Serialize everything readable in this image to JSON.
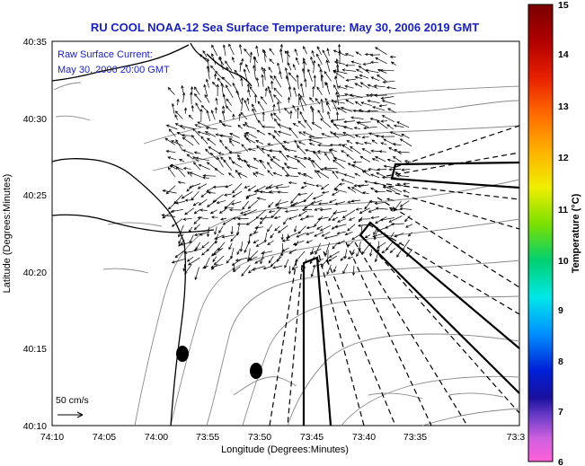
{
  "title": "RU COOL  NOAA-12  Sea Surface Temperature:  May 30, 2006 2019 GMT",
  "annotation": {
    "line1": "Raw Surface Current:",
    "line2": "May 30, 2006 20:00 GMT"
  },
  "axes": {
    "xlabel": "Longitude (Degrees:Minutes)",
    "ylabel": "Latitude (Degrees:Minutes)",
    "xticks": [
      "74:10",
      "74:05",
      "74:00",
      "73:55",
      "73:50",
      "73:45",
      "73:40",
      "73:35",
      "73:3"
    ],
    "yticks": [
      "40:35",
      "40:30",
      "40:25",
      "40:20",
      "40:15",
      "40:10"
    ]
  },
  "colorbar": {
    "label": "Temperature (°C)",
    "ticks": [
      "15",
      "14",
      "13",
      "12",
      "11",
      "10",
      "9",
      "8",
      "7",
      "6"
    ]
  },
  "scale": {
    "label": "50 cm/s"
  },
  "colors": {
    "title": "#1a22b8",
    "coast": "#000000",
    "bathymetry": "#8a8a8a"
  }
}
